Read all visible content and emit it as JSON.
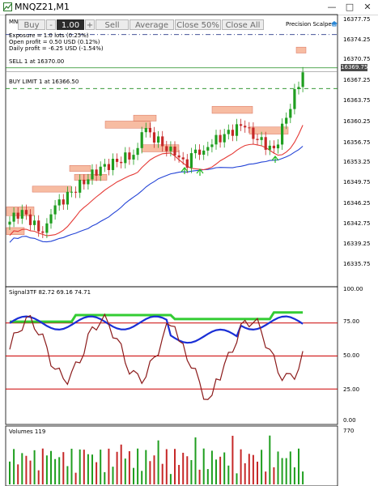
{
  "window": {
    "title": "MNQZ21,M1",
    "min_label": "—",
    "max_label": "□",
    "close_label": "✕"
  },
  "trade_panel": {
    "buy_label": "Buy",
    "minus_label": "-",
    "qty_value": "1.00",
    "plus_label": "+",
    "sell_label": "Sell",
    "average_label": "Average",
    "close50_label": "Close 50%",
    "closeall_label": "Close All"
  },
  "chart_header": {
    "symbol_short": "MN",
    "exposure": "Exposure = 1.0 lots (0.25%)",
    "open_profit": "Open profit = 0.50 USD (0.12%)",
    "daily_profit": "Daily profit = -6.25 USD (-1.54%)",
    "scalper_label": "Precision Scalper"
  },
  "orders": {
    "sell_label": "SELL 1 at 16370.00",
    "buy_limit_label": "BUY LIMIT 1 at 16366.50"
  },
  "price_axis": {
    "labels": [
      "16377.75",
      "16374.25",
      "16370.75",
      "16367.25",
      "16363.75",
      "16360.25",
      "16356.75",
      "16353.25",
      "16349.75",
      "16346.25",
      "16342.75",
      "16339.25",
      "16335.75"
    ],
    "current_price": "16369.75"
  },
  "signal_panel": {
    "title": "Signal3TF 82.72 69.16 74.71",
    "axis_labels": [
      "100.00",
      "75.00",
      "50.00",
      "25.00",
      "0.00"
    ],
    "levels": [
      75,
      50,
      25
    ]
  },
  "volume_panel": {
    "title": "Volumes 119",
    "axis_label": "770"
  },
  "colors": {
    "bull": "#1f9e1f",
    "bear": "#c62828",
    "ma_fast": "#e53935",
    "ma_slow": "#2343d6",
    "zone_fill": "#f4a07a",
    "signal_green": "#33cc33",
    "signal_blue": "#1a2fd6",
    "signal_dark": "#8b1a1a",
    "level_line": "#cc0000"
  },
  "chart_data": [
    {
      "type": "candlestick",
      "title": "MNQZ21,M1",
      "ylim": [
        16333.0,
        16379.0
      ],
      "current_price": 16369.75,
      "lines": [
        {
          "name": "SELL 1 at 16370.00",
          "value": 16370.0
        },
        {
          "name": "BUY LIMIT 1 at 16366.50",
          "value": 16366.5
        }
      ]
    },
    {
      "type": "line",
      "title": "Signal3TF 82.72 69.16 74.71",
      "ylim": [
        0,
        100
      ],
      "levels": [
        75,
        50,
        25
      ],
      "series": [
        {
          "name": "82.72",
          "values": [
            82.72
          ]
        },
        {
          "name": "69.16",
          "values": [
            69.16
          ]
        },
        {
          "name": "74.71",
          "values": [
            74.71
          ]
        }
      ]
    },
    {
      "type": "bar",
      "title": "Volumes 119",
      "ylim": [
        0,
        770
      ],
      "values": [
        119
      ]
    }
  ]
}
